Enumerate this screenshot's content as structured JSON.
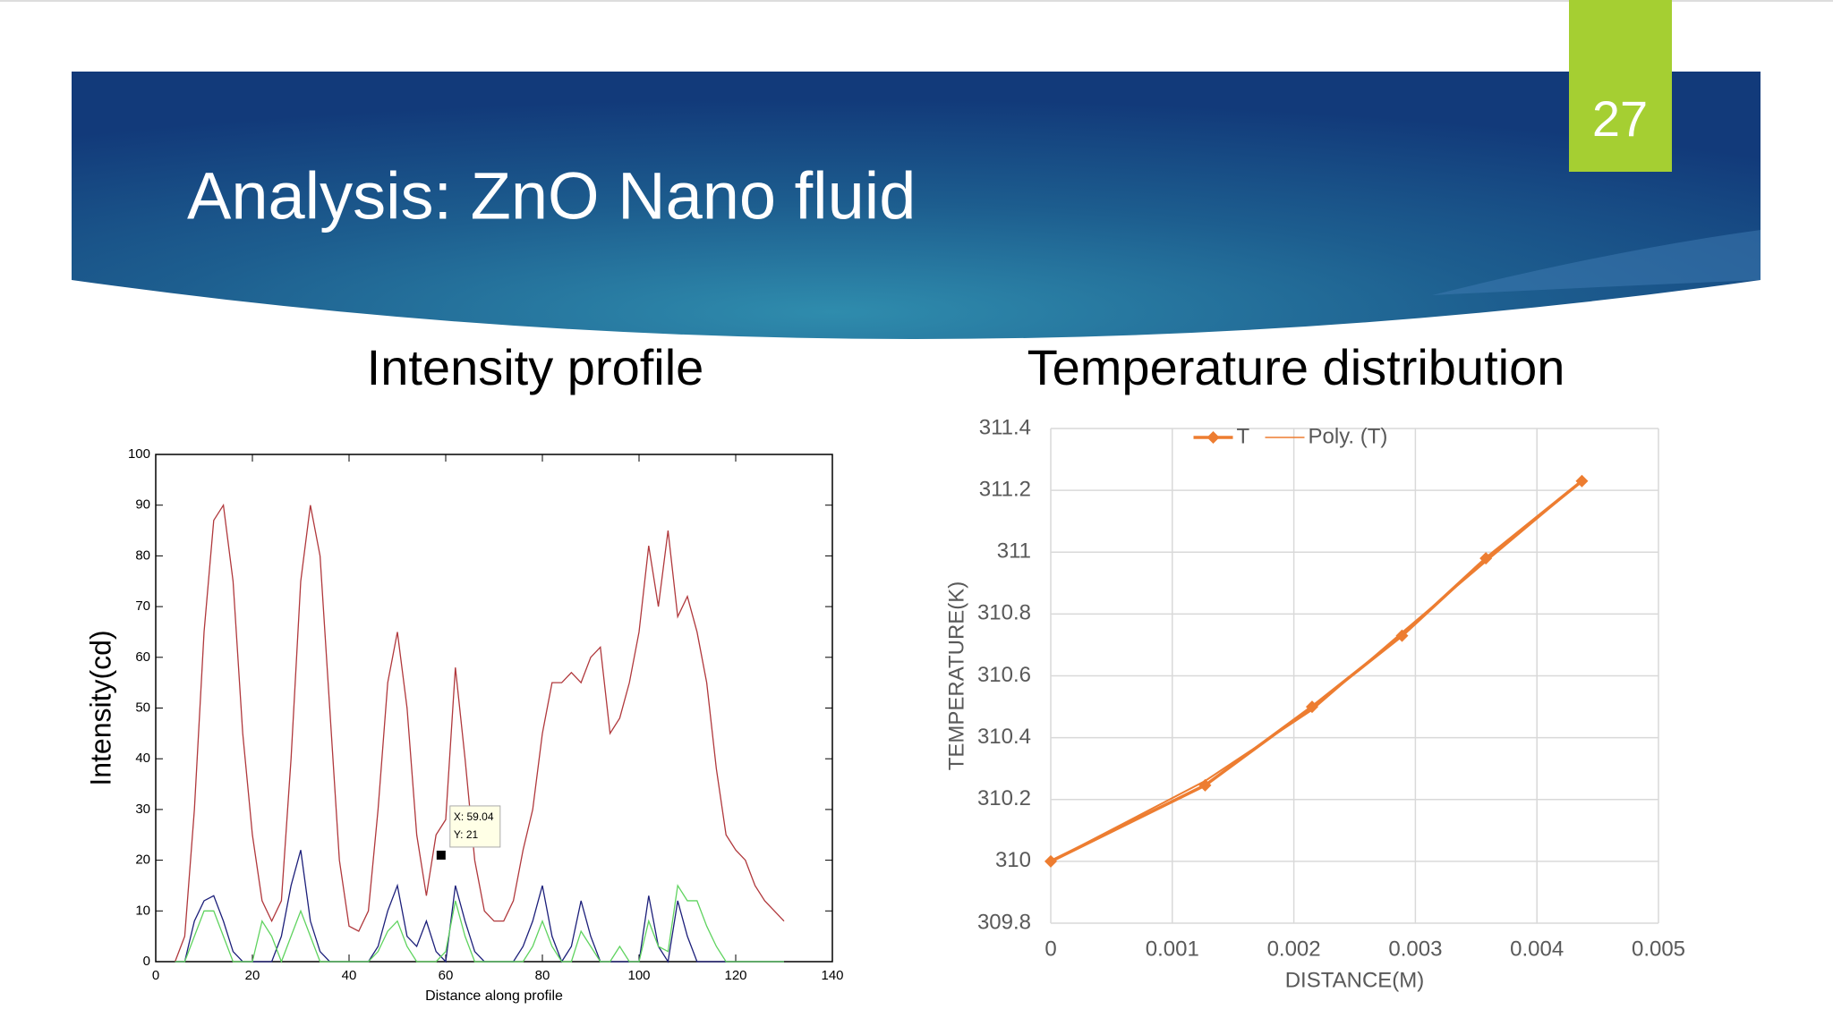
{
  "slide": {
    "title": "Analysis: ZnO Nano fluid",
    "number": "27"
  },
  "chart_data": [
    {
      "type": "line",
      "title": "Intensity profile",
      "x_label": "Distance along profile",
      "y_label": "Intensity(cd)",
      "x": [
        4,
        6,
        8,
        10,
        12,
        14,
        16,
        18,
        20,
        22,
        24,
        26,
        28,
        30,
        32,
        34,
        36,
        38,
        40,
        42,
        44,
        46,
        48,
        50,
        52,
        54,
        56,
        58,
        60,
        62,
        64,
        66,
        68,
        70,
        72,
        74,
        76,
        78,
        80,
        82,
        84,
        86,
        88,
        90,
        92,
        94,
        96,
        98,
        100,
        102,
        104,
        106,
        108,
        110,
        112,
        114,
        116,
        118,
        120,
        122,
        124,
        126,
        128,
        130
      ],
      "series": [
        {
          "color": "#b0383c",
          "values": [
            0,
            5,
            30,
            65,
            87,
            90,
            75,
            45,
            25,
            12,
            8,
            12,
            40,
            75,
            90,
            80,
            50,
            20,
            7,
            6,
            10,
            30,
            55,
            65,
            50,
            25,
            13,
            25,
            28,
            58,
            40,
            20,
            10,
            8,
            8,
            12,
            22,
            30,
            45,
            55,
            55,
            57,
            55,
            60,
            62,
            45,
            48,
            55,
            65,
            82,
            70,
            85,
            68,
            72,
            65,
            55,
            38,
            25,
            22,
            20,
            15,
            12,
            10,
            8
          ]
        },
        {
          "color": "#1c1f7a",
          "values": [
            0,
            0,
            8,
            12,
            13,
            8,
            2,
            0,
            0,
            0,
            0,
            5,
            15,
            22,
            8,
            2,
            0,
            0,
            0,
            0,
            0,
            3,
            10,
            15,
            5,
            3,
            8,
            2,
            0,
            15,
            8,
            2,
            0,
            0,
            0,
            0,
            3,
            8,
            15,
            5,
            0,
            3,
            12,
            5,
            0,
            0,
            0,
            0,
            0,
            13,
            3,
            0,
            12,
            5,
            0,
            0,
            0,
            0,
            0,
            0,
            0,
            0,
            0,
            0
          ]
        },
        {
          "color": "#5fd35f",
          "values": [
            0,
            0,
            5,
            10,
            10,
            5,
            0,
            0,
            0,
            8,
            5,
            0,
            5,
            10,
            5,
            0,
            0,
            0,
            0,
            0,
            0,
            2,
            6,
            8,
            3,
            0,
            0,
            0,
            2,
            12,
            5,
            0,
            0,
            0,
            0,
            0,
            0,
            3,
            8,
            3,
            0,
            0,
            6,
            3,
            0,
            0,
            3,
            0,
            0,
            8,
            3,
            2,
            15,
            12,
            12,
            7,
            3,
            0,
            0,
            0,
            0,
            0,
            0,
            0
          ]
        }
      ],
      "xlim": [
        0,
        140
      ],
      "xticks": [
        0,
        20,
        40,
        60,
        80,
        100,
        120,
        140
      ],
      "ylim": [
        0,
        100
      ],
      "yticks": [
        0,
        10,
        20,
        30,
        40,
        50,
        60,
        70,
        80,
        90,
        100
      ],
      "annotation": {
        "x": 59.04,
        "y": 21,
        "lines": [
          "X: 59.04",
          "Y: 21"
        ]
      }
    },
    {
      "type": "line",
      "title": "Temperature distribution",
      "x_label": "DISTANCE(M)",
      "y_label": "TEMPERATURE(K)",
      "x": [
        0,
        0.00127,
        0.00215,
        0.00289,
        0.00358,
        0.00437
      ],
      "series": [
        {
          "name": "T",
          "color": "#ed7d31",
          "marker": "diamond",
          "values": [
            310,
            310.246,
            310.5,
            310.73,
            310.98,
            311.23
          ]
        },
        {
          "name": "Poly. (T)",
          "color": "#ed7d31",
          "values": [
            310,
            310.26,
            310.49,
            310.74,
            310.97,
            311.23
          ]
        }
      ],
      "xlim": [
        0,
        0.005
      ],
      "xticks": [
        0,
        0.001,
        0.002,
        0.003,
        0.004,
        0.005
      ],
      "ylim": [
        309.8,
        311.4
      ],
      "yticks": [
        309.8,
        310,
        310.2,
        310.4,
        310.6,
        310.8,
        311,
        311.2,
        311.4
      ],
      "grid": true,
      "legend": "top"
    }
  ]
}
